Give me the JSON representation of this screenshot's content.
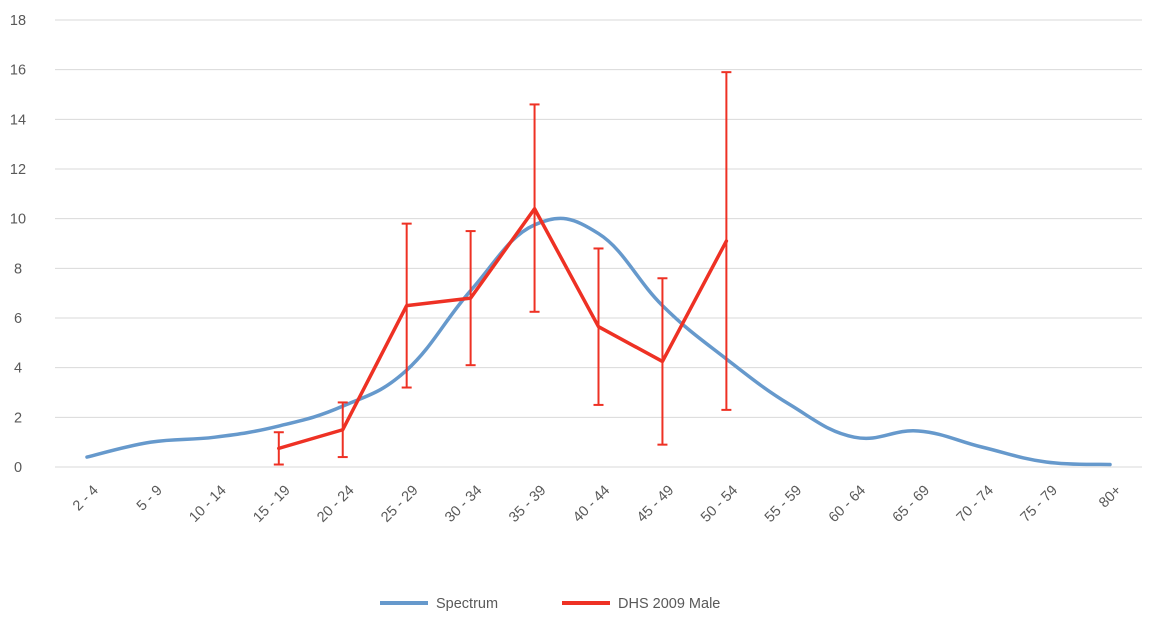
{
  "chart_data": {
    "type": "line",
    "categories": [
      "2 - 4",
      "5 - 9",
      "10 - 14",
      "15 - 19",
      "20 - 24",
      "25 - 29",
      "30 - 34",
      "35 - 39",
      "40 - 44",
      "45 - 49",
      "50 - 54",
      "55 - 59",
      "60 - 64",
      "65 - 69",
      "70 - 74",
      "75 - 79",
      "80+"
    ],
    "ylim": [
      0,
      18
    ],
    "yticks": [
      0,
      2,
      4,
      6,
      8,
      10,
      12,
      14,
      16,
      18
    ],
    "grid": true,
    "legend_position": "bottom",
    "series": [
      {
        "name": "Spectrum",
        "color": "#6699cc",
        "smooth": true,
        "values": [
          0.4,
          1.0,
          1.2,
          1.65,
          2.45,
          3.9,
          7.1,
          9.75,
          9.4,
          6.5,
          4.35,
          2.5,
          1.2,
          1.45,
          0.8,
          0.2,
          0.1
        ]
      },
      {
        "name": "DHS 2009 Male",
        "color": "#ee3124",
        "smooth": false,
        "values": [
          null,
          null,
          null,
          0.75,
          1.5,
          6.5,
          6.8,
          10.4,
          5.65,
          4.25,
          9.1,
          null,
          null,
          null,
          null,
          null,
          null
        ],
        "error_low": [
          null,
          null,
          null,
          0.1,
          0.4,
          3.2,
          4.1,
          6.25,
          2.5,
          0.9,
          2.3,
          null,
          null,
          null,
          null,
          null,
          null
        ],
        "error_high": [
          null,
          null,
          null,
          1.4,
          2.6,
          9.8,
          9.5,
          14.6,
          8.8,
          7.6,
          15.9,
          null,
          null,
          null,
          null,
          null,
          null
        ]
      }
    ]
  }
}
